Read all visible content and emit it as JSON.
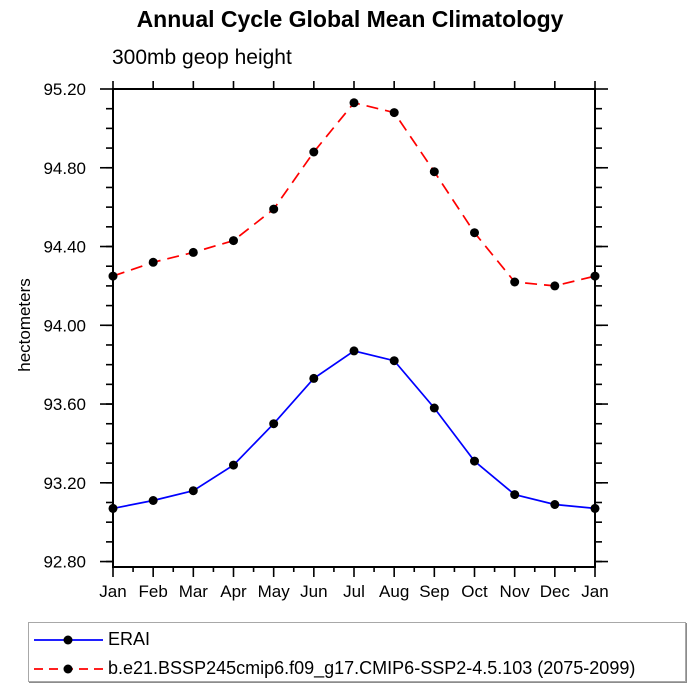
{
  "header": {
    "title": "Annual Cycle Global Mean Climatology",
    "subtitle": "300mb geop height"
  },
  "chart_data": {
    "type": "line",
    "title": "Annual Cycle Global Mean Climatology",
    "subtitle": "300mb geop height",
    "xlabel": "",
    "ylabel": "hectometers",
    "categories": [
      "Jan",
      "Feb",
      "Mar",
      "Apr",
      "May",
      "Jun",
      "Jul",
      "Aug",
      "Sep",
      "Oct",
      "Nov",
      "Dec",
      "Jan"
    ],
    "series": [
      {
        "name": "ERAI",
        "color": "#0000ff",
        "line_style": "solid",
        "marker": "filled-circle",
        "marker_color": "#000000",
        "values": [
          93.07,
          93.11,
          93.16,
          93.29,
          93.5,
          93.73,
          93.87,
          93.82,
          93.58,
          93.31,
          93.14,
          93.09,
          93.07
        ]
      },
      {
        "name": "b.e21.BSSP245cmip6.f09_g17.CMIP6-SSP2-4.5.103 (2075-2099)",
        "color": "#ff0000",
        "line_style": "dashed",
        "marker": "filled-circle",
        "marker_color": "#000000",
        "values": [
          94.25,
          94.32,
          94.37,
          94.43,
          94.59,
          94.88,
          95.13,
          95.08,
          94.78,
          94.47,
          94.22,
          94.2,
          94.25
        ]
      }
    ],
    "y_axis": {
      "min": 92.78,
      "max": 95.2,
      "major_step": 0.4,
      "minor_step": 0.1,
      "major_tick_labels": [
        "95.20",
        "94.80",
        "94.40",
        "94.00",
        "93.60",
        "93.20",
        "92.80"
      ]
    },
    "x_axis": {
      "minor_ticks": "half-month",
      "note": "month major ticks on top and bottom axes, labels on bottom only"
    },
    "grid": false,
    "legend_position": "bottom-left"
  }
}
